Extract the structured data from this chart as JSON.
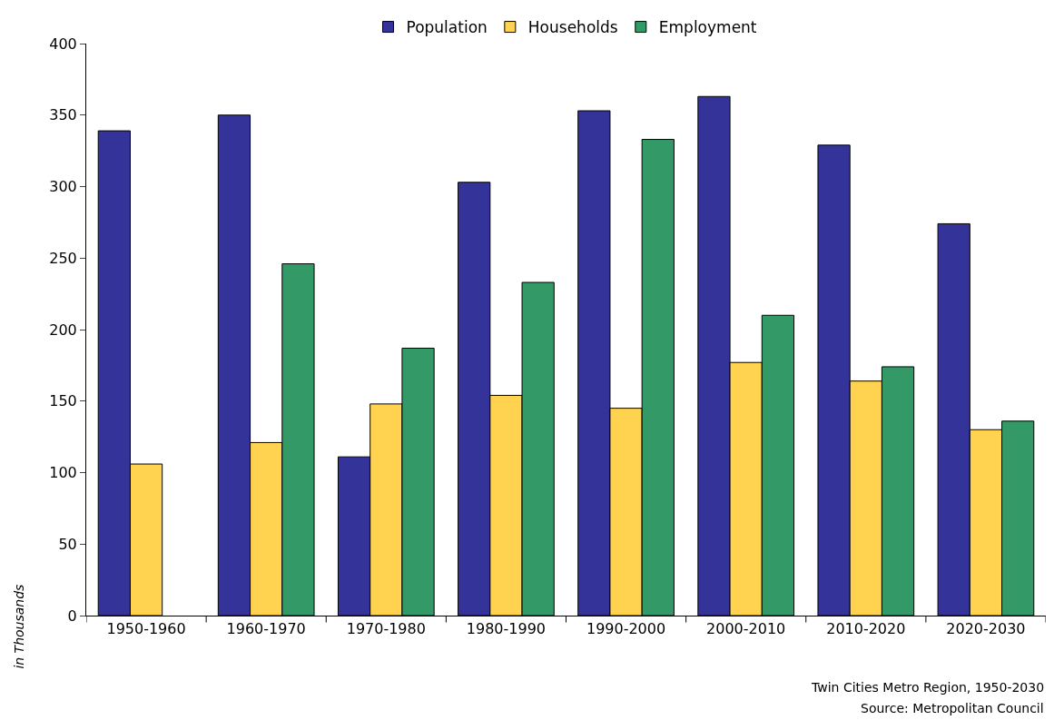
{
  "chart_data": {
    "type": "bar",
    "ylabel": "in Thousands",
    "categories": [
      "1950-1960",
      "1960-1970",
      "1970-1980",
      "1980-1990",
      "1990-2000",
      "2000-2010",
      "2010-2020",
      "2020-2030"
    ],
    "series": [
      {
        "name": "Population",
        "color": "#333399",
        "values": [
          339,
          350,
          111,
          303,
          353,
          363,
          329,
          274
        ]
      },
      {
        "name": "Households",
        "color": "#ffd24f",
        "values": [
          106,
          121,
          148,
          154,
          145,
          177,
          164,
          130
        ]
      },
      {
        "name": "Employment",
        "color": "#339966",
        "values": [
          null,
          246,
          187,
          233,
          333,
          210,
          174,
          136
        ]
      }
    ],
    "ylim": [
      0,
      400
    ],
    "yticks": [
      0,
      50,
      100,
      150,
      200,
      250,
      300,
      350,
      400
    ],
    "grid": false,
    "legend": "top",
    "annotations": [
      "Twin Cities Metro Region, 1950-2030",
      "Source: Metropolitan Council"
    ]
  }
}
